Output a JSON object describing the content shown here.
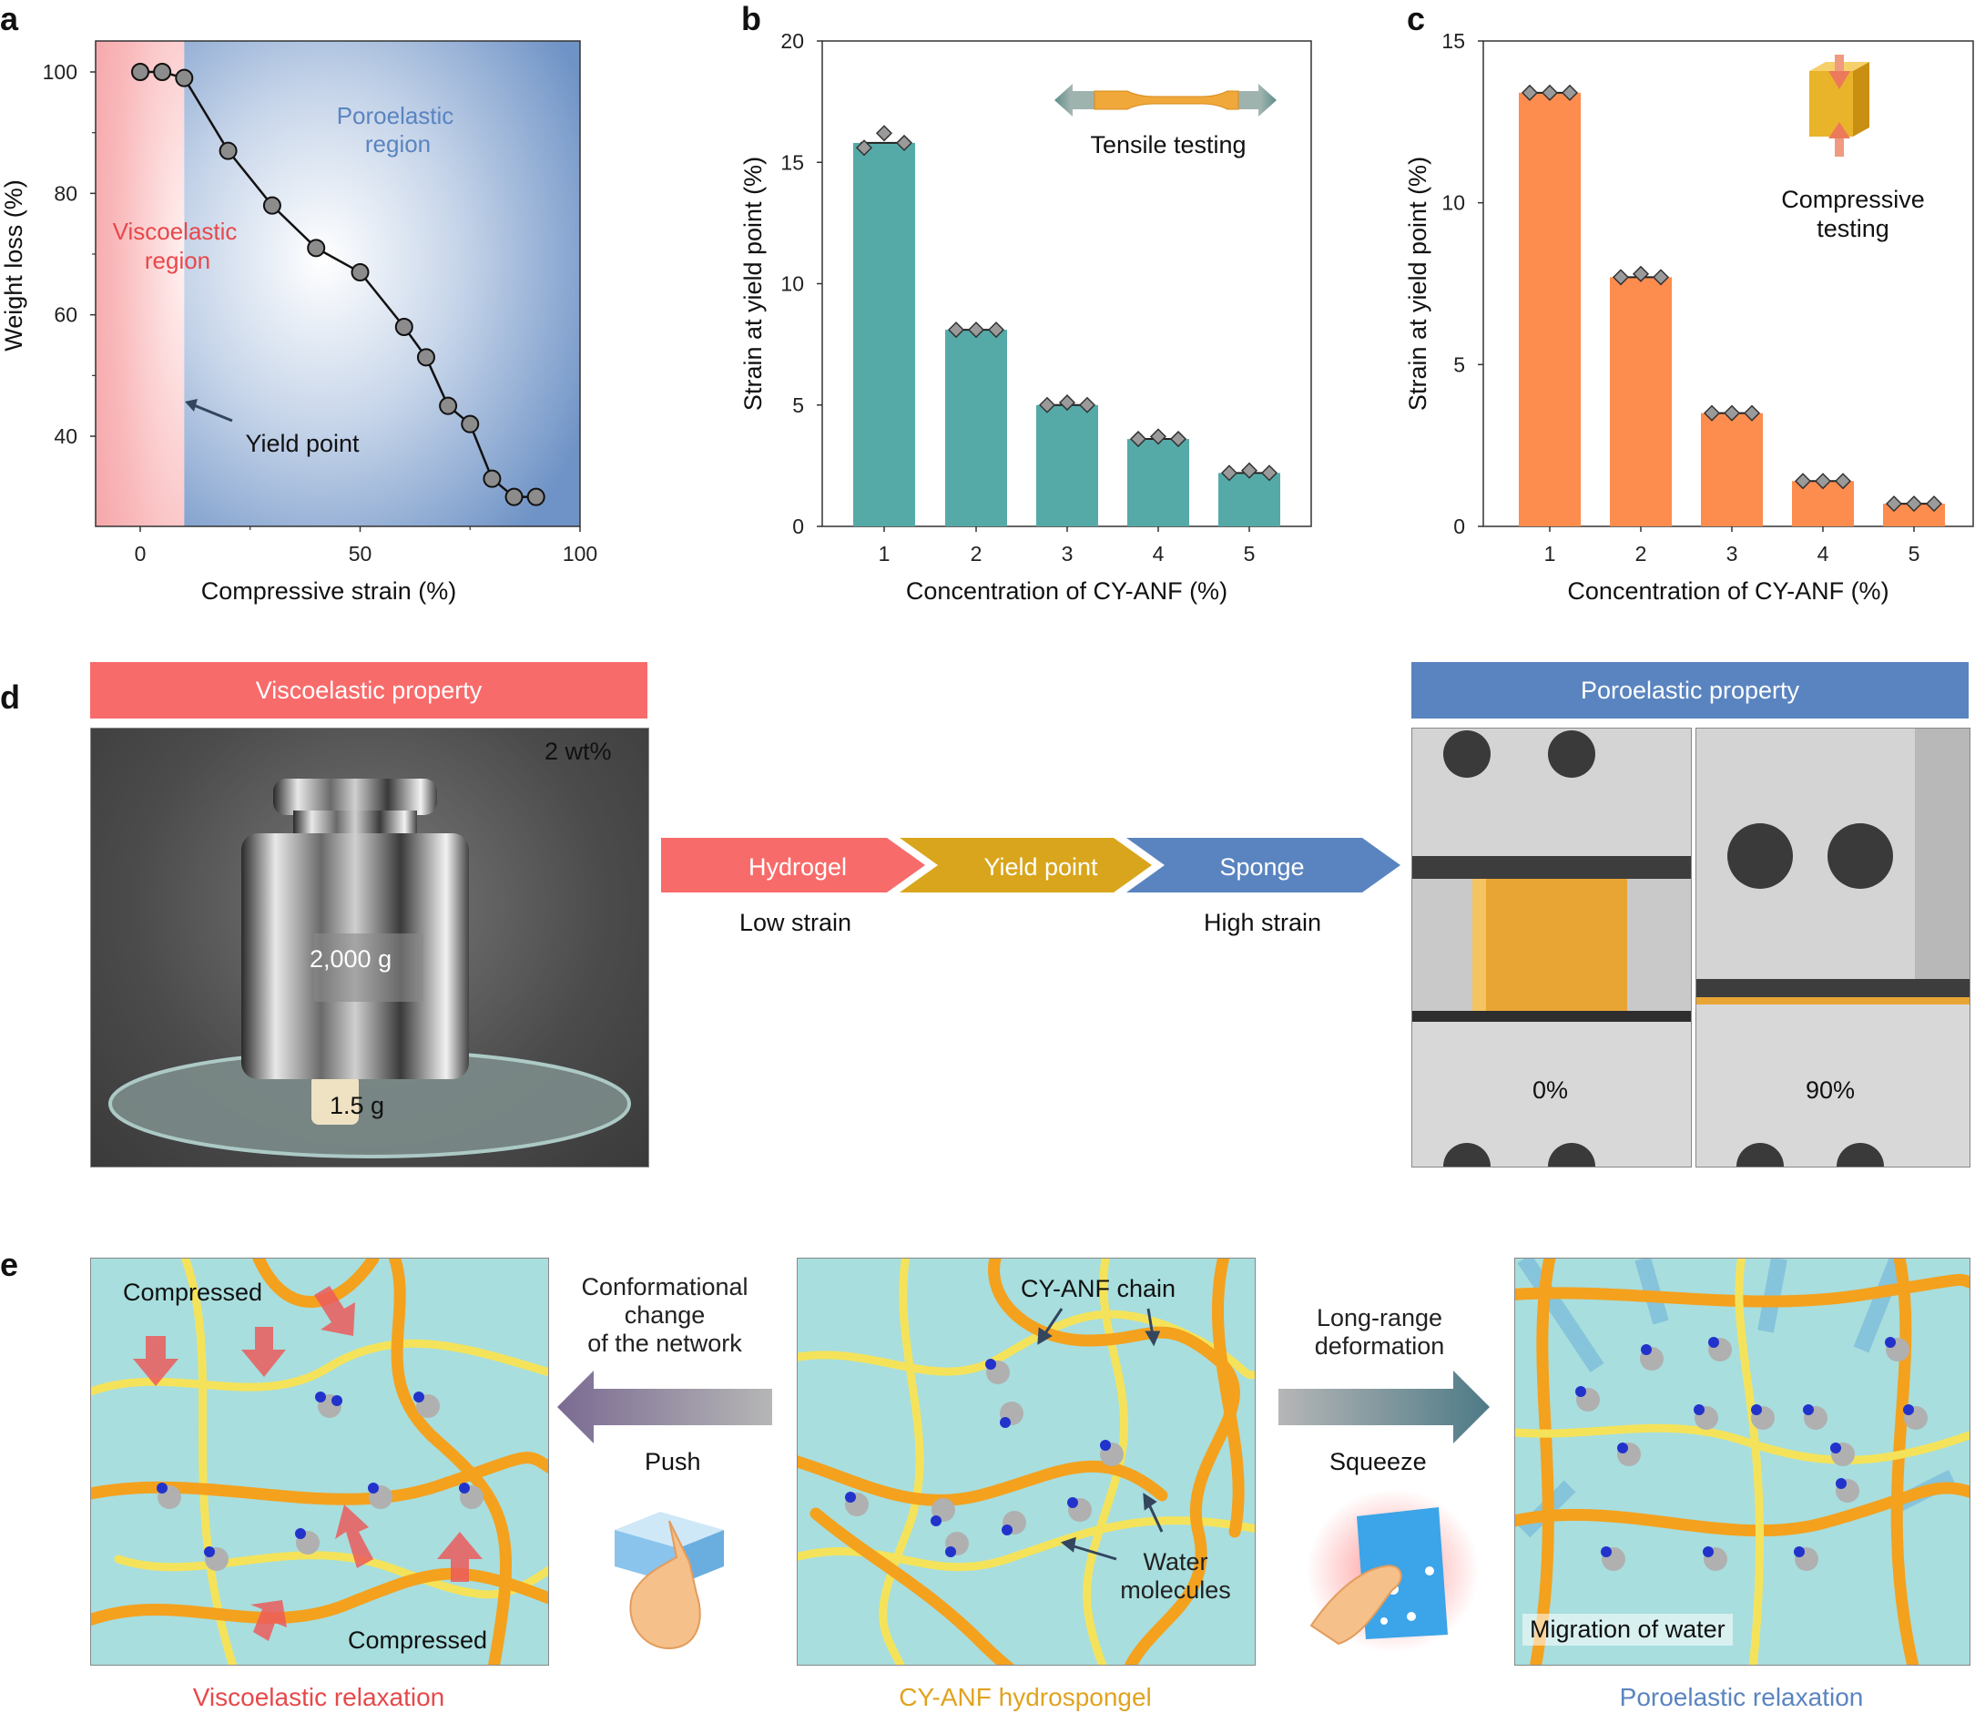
{
  "panels": {
    "a": "a",
    "b": "b",
    "c": "c",
    "d": "d",
    "e": "e"
  },
  "chart_data": [
    {
      "type": "line",
      "panel": "a",
      "x": [
        0,
        5,
        10,
        20,
        30,
        40,
        50,
        60,
        65,
        70,
        75,
        80,
        85,
        90
      ],
      "y": [
        100,
        100,
        99,
        87,
        78,
        71,
        67,
        58,
        53,
        45,
        42,
        33,
        30,
        30
      ],
      "xlabel": "Compressive strain (%)",
      "ylabel": "Weight loss (%)",
      "xticks": [
        "0",
        "50",
        "100"
      ],
      "yticks": [
        "40",
        "60",
        "80",
        "100"
      ],
      "xlim": [
        -10,
        100
      ],
      "ylim": [
        27,
        105
      ],
      "regions": [
        {
          "label_line1": "Viscoelastic",
          "label_line2": "region",
          "x_range": [
            -10,
            10
          ],
          "color": "#f4a0a4"
        },
        {
          "label_line1": "Poroelastic",
          "label_line2": "region",
          "x_range": [
            10,
            100
          ],
          "color": "#6f93c6"
        }
      ],
      "annotation": "Yield point"
    },
    {
      "type": "bar",
      "panel": "b",
      "categories": [
        "1",
        "2",
        "3",
        "4",
        "5"
      ],
      "values": [
        15.8,
        8.1,
        5.0,
        3.6,
        2.2
      ],
      "points": [
        [
          15.6,
          16.2,
          15.8
        ],
        [
          8.1,
          8.1,
          8.1
        ],
        [
          5.0,
          5.1,
          5.0
        ],
        [
          3.6,
          3.7,
          3.6
        ],
        [
          2.2,
          2.3,
          2.2
        ]
      ],
      "xlabel": "Concentration of CY-ANF (%)",
      "ylabel": "Strain at yield point (%)",
      "yticks": [
        "0",
        "5",
        "10",
        "15",
        "20"
      ],
      "ylim": [
        0,
        20
      ],
      "color": "#55aaa8",
      "inset_label": "Tensile testing"
    },
    {
      "type": "bar",
      "panel": "c",
      "categories": [
        "1",
        "2",
        "3",
        "4",
        "5"
      ],
      "values": [
        13.4,
        7.7,
        3.5,
        1.4,
        0.7
      ],
      "points": [
        [
          13.4,
          13.4,
          13.4
        ],
        [
          7.7,
          7.8,
          7.7
        ],
        [
          3.5,
          3.5,
          3.5
        ],
        [
          1.4,
          1.4,
          1.4
        ],
        [
          0.7,
          0.7,
          0.7
        ]
      ],
      "xlabel": "Concentration of CY-ANF (%)",
      "ylabel": "Strain at yield point (%)",
      "yticks": [
        "0",
        "5",
        "10",
        "15"
      ],
      "ylim": [
        0,
        15
      ],
      "color": "#fd8c4f",
      "inset_label_line1": "Compressive",
      "inset_label_line2": "testing"
    }
  ],
  "panel_d": {
    "visco_banner": "Viscoelastic property",
    "poro_banner": "Poroelastic property",
    "photo_concentration": "2 wt%",
    "weight_label": "2,000 g",
    "sample_label": "1.5 g",
    "arrows": [
      "Hydrogel",
      "Yield point",
      "Sponge"
    ],
    "arrow_colors": [
      "#f86b6b",
      "#d9a51c",
      "#5a84c0"
    ],
    "low_strain": "Low strain",
    "high_strain": "High strain",
    "strain_0": "0%",
    "strain_90": "90%"
  },
  "panel_e": {
    "compressed_top": "Compressed",
    "compressed_bottom": "Compressed",
    "conformational_line1": "Conformational",
    "conformational_line2": "change",
    "conformational_line3": "of the network",
    "push": "Push",
    "chain_label": "CY-ANF chain",
    "water_line1": "Water",
    "water_line2": "molecules",
    "long_range_line1": "Long-range",
    "long_range_line2": "deformation",
    "squeeze": "Squeeze",
    "migration": "Migration of water",
    "cap_visco": "Viscoelastic relaxation",
    "cap_hydro": "CY-ANF hydrospongel",
    "cap_poro": "Poroelastic relaxation",
    "cap_colors": [
      "#e8484a",
      "#e0a320",
      "#5a84c0"
    ]
  }
}
